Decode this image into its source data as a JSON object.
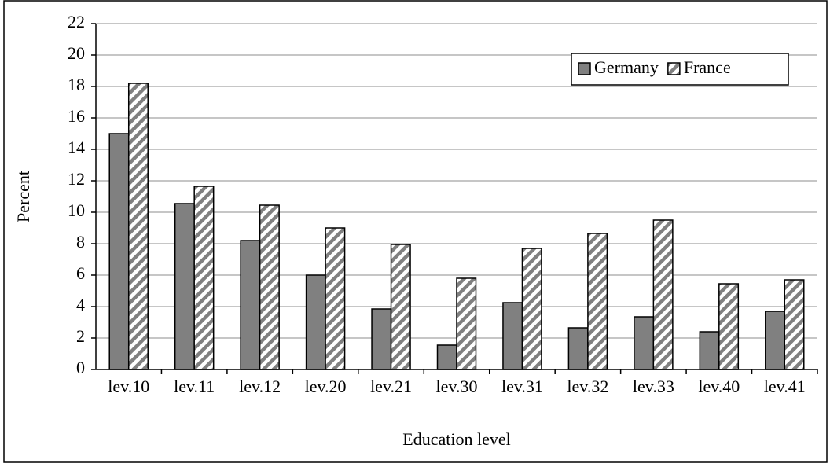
{
  "chart_data": {
    "type": "bar",
    "y_label": "Percent",
    "x_label": "Education level",
    "categories": [
      "lev.10",
      "lev.11",
      "lev.12",
      "lev.20",
      "lev.21",
      "lev.30",
      "lev.31",
      "lev.32",
      "lev.33",
      "lev.40",
      "lev.41"
    ],
    "series": [
      {
        "name": "Germany",
        "color": "#808080",
        "pattern": "solid",
        "values": [
          15.0,
          10.55,
          8.2,
          6.0,
          3.85,
          1.55,
          4.25,
          2.65,
          3.35,
          2.4,
          3.7
        ]
      },
      {
        "name": "France",
        "color": "#808080",
        "pattern": "hatch",
        "values": [
          18.2,
          11.65,
          10.45,
          9.0,
          7.95,
          5.8,
          7.7,
          8.65,
          9.5,
          5.45,
          5.7
        ]
      }
    ],
    "ylim": [
      0,
      22
    ],
    "yticks": [
      0,
      2,
      4,
      6,
      8,
      10,
      12,
      14,
      16,
      18,
      20,
      22
    ],
    "grid": true,
    "legend": "top-right"
  }
}
